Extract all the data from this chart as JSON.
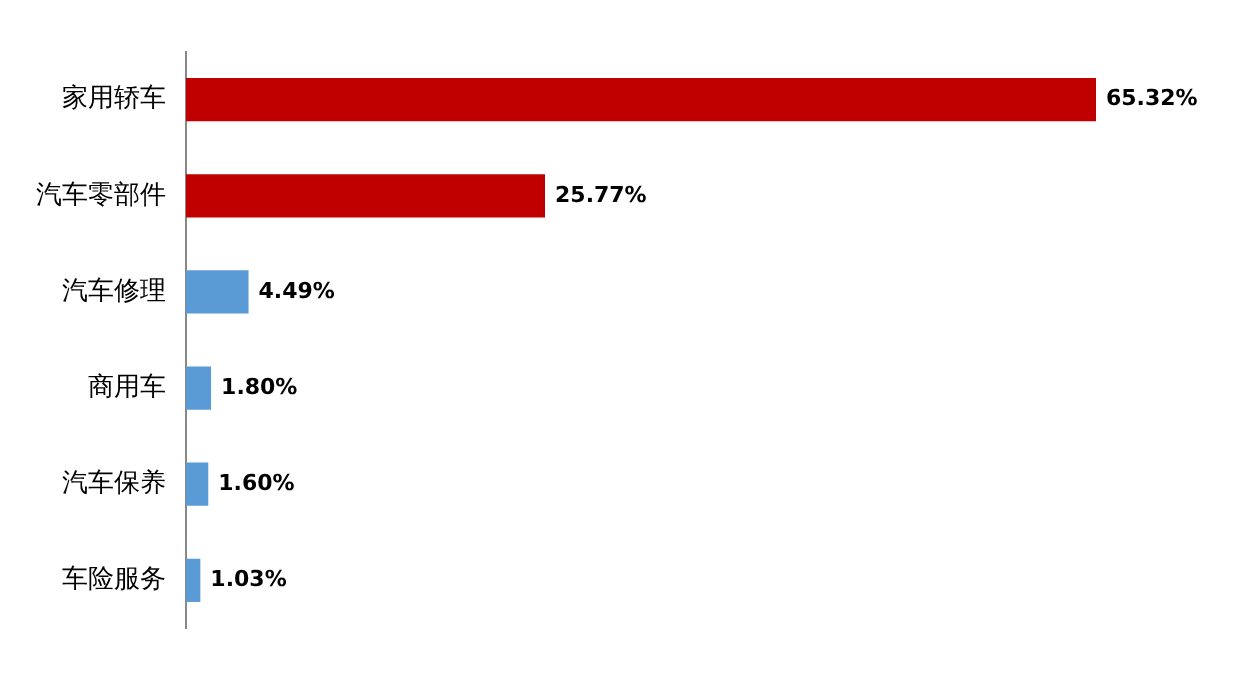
{
  "chart_data": {
    "type": "bar",
    "orientation": "horizontal",
    "categories": [
      "家用轿车",
      "汽车零部件",
      "汽车修理",
      "商用车",
      "汽车保养",
      "车险服务"
    ],
    "values": [
      65.32,
      25.77,
      4.49,
      1.8,
      1.6,
      1.03
    ],
    "value_labels": [
      "65.32%",
      "25.77%",
      "4.49%",
      "1.80%",
      "1.60%",
      "1.03%"
    ],
    "colors": [
      "#c00000",
      "#c00000",
      "#5b9bd5",
      "#5b9bd5",
      "#5b9bd5",
      "#5b9bd5"
    ],
    "tick_labels": "y",
    "grid": false,
    "legend": false
  }
}
